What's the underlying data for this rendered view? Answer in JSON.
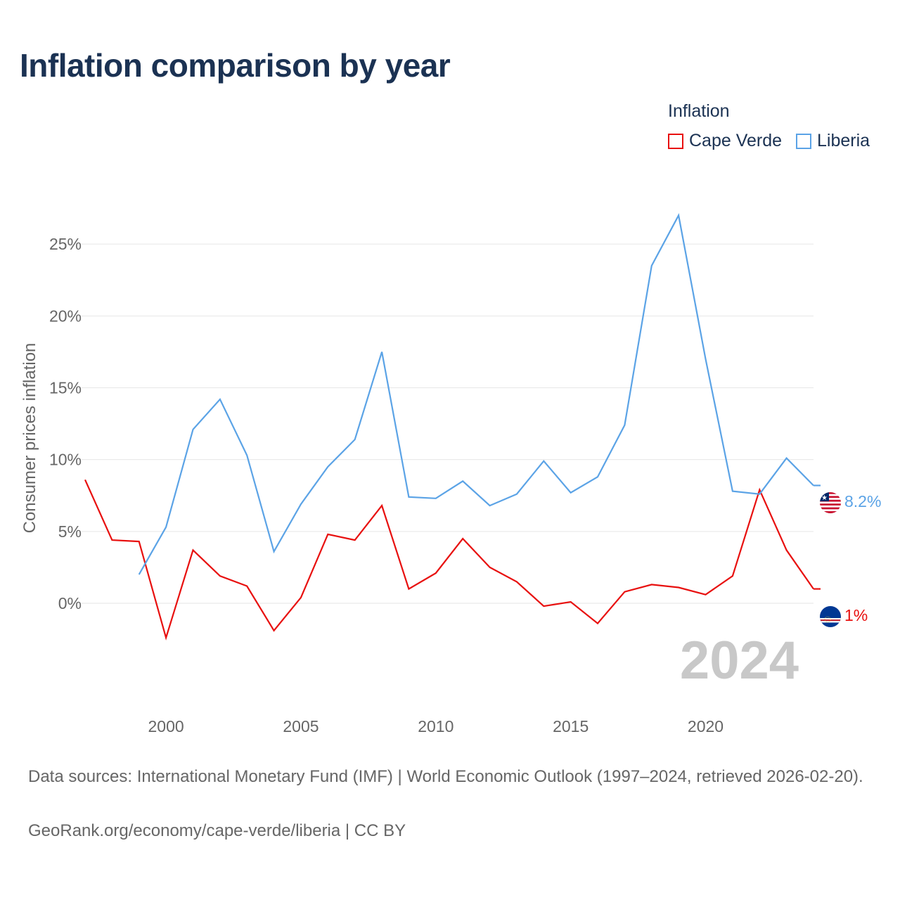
{
  "title": "Inflation comparison by year",
  "legend": {
    "title": "Inflation",
    "items": [
      {
        "label": "Cape Verde",
        "color": "#e8100f"
      },
      {
        "label": "Liberia",
        "color": "#5ba3e6"
      }
    ]
  },
  "footer": {
    "source": "Data sources: International Monetary Fund (IMF) | World Economic Outlook (1997–2024, retrieved 2026-02-20).",
    "credit": "GeoRank.org/economy/cape-verde/liberia | CC BY"
  },
  "year_watermark": "2024",
  "chart_data": {
    "type": "line",
    "title": "Inflation comparison by year",
    "xlabel": "",
    "ylabel": "Consumer prices inflation",
    "xlim": [
      1997,
      2024
    ],
    "ylim": [
      -4.6,
      27.7
    ],
    "x_ticks": [
      2000,
      2005,
      2010,
      2015,
      2020
    ],
    "y_ticks": [
      0,
      5,
      10,
      15,
      20,
      25
    ],
    "y_tick_labels": [
      "0%",
      "5%",
      "10%",
      "15%",
      "20%",
      "25%"
    ],
    "grid": true,
    "legend_position": "top-right",
    "series": [
      {
        "name": "Cape Verde",
        "color": "#e8100f",
        "end_label": "1%",
        "flag": "cape-verde-flag-icon",
        "x": [
          1997,
          1998,
          1999,
          2000,
          2001,
          2002,
          2003,
          2004,
          2005,
          2006,
          2007,
          2008,
          2009,
          2010,
          2011,
          2012,
          2013,
          2014,
          2015,
          2016,
          2017,
          2018,
          2019,
          2020,
          2021,
          2022,
          2023,
          2024
        ],
        "values": [
          8.6,
          4.4,
          4.3,
          -2.4,
          3.7,
          1.9,
          1.2,
          -1.9,
          0.4,
          4.8,
          4.4,
          6.8,
          1.0,
          2.1,
          4.5,
          2.5,
          1.5,
          -0.2,
          0.1,
          -1.4,
          0.8,
          1.3,
          1.1,
          0.6,
          1.9,
          7.9,
          3.7,
          1.0
        ]
      },
      {
        "name": "Liberia",
        "color": "#5ba3e6",
        "end_label": "8.2%",
        "flag": "liberia-flag-icon",
        "x": [
          1999,
          2000,
          2001,
          2002,
          2003,
          2004,
          2005,
          2006,
          2007,
          2008,
          2009,
          2010,
          2011,
          2012,
          2013,
          2014,
          2015,
          2016,
          2017,
          2018,
          2019,
          2020,
          2021,
          2022,
          2023,
          2024
        ],
        "values": [
          2.0,
          5.3,
          12.1,
          14.2,
          10.3,
          3.6,
          6.9,
          9.5,
          11.4,
          17.5,
          7.4,
          7.3,
          8.5,
          6.8,
          7.6,
          9.9,
          7.7,
          8.8,
          12.4,
          23.5,
          27.0,
          17.0,
          7.8,
          7.6,
          10.1,
          8.2
        ]
      }
    ]
  }
}
